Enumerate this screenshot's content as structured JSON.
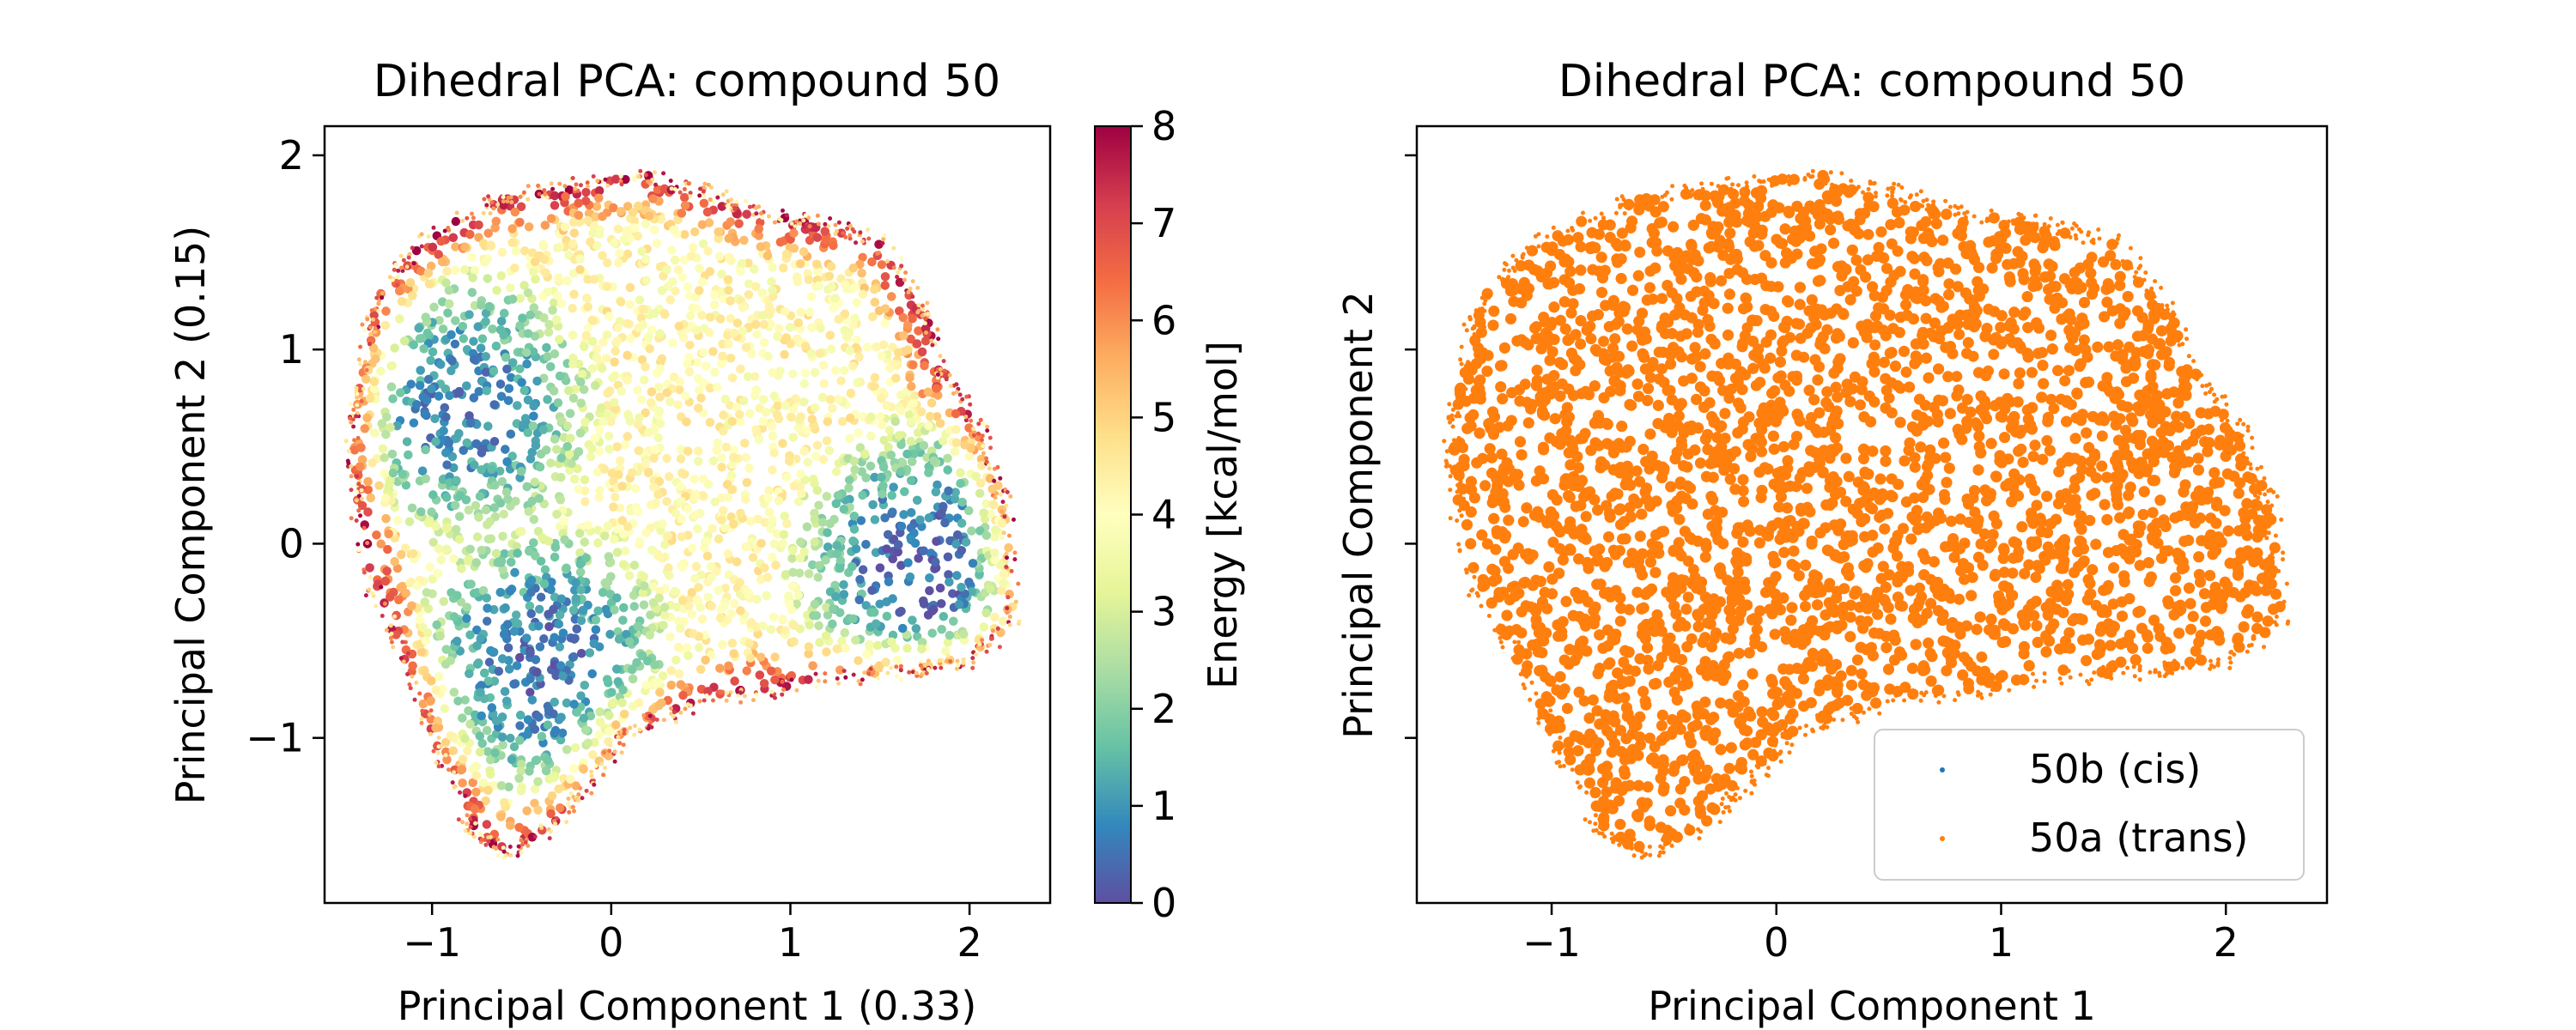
{
  "chart_data": [
    {
      "type": "scatter",
      "title": "Dihedral PCA: compound 50",
      "xlabel": "Principal Component 1 (0.33)",
      "ylabel": "Principal Component 2 (0.15)",
      "xlim": [
        -1.6,
        2.45
      ],
      "ylim": [
        -1.85,
        2.15
      ],
      "xticks": [
        "−1",
        "0",
        "1",
        "2"
      ],
      "yticks": [
        "−1",
        "0",
        "1",
        "2"
      ],
      "colorbar": {
        "label": "Energy [kcal/mol]",
        "range": [
          0,
          8
        ],
        "ticks": [
          "0",
          "1",
          "2",
          "3",
          "4",
          "5",
          "6",
          "7",
          "8"
        ],
        "colormap": "Spectral_r",
        "colors": [
          "#5e4fa2",
          "#3288bd",
          "#66c2a5",
          "#abdda4",
          "#e6f598",
          "#ffffbf",
          "#fee08b",
          "#fdae61",
          "#f46d43",
          "#d53e4f",
          "#9e0142"
        ]
      },
      "energy_minima": [
        {
          "x": -0.8,
          "y": 0.7,
          "energy": 0.6
        },
        {
          "x": -0.4,
          "y": -0.6,
          "energy": 0.4
        },
        {
          "x": 1.75,
          "y": -0.1,
          "energy": 0.3
        }
      ],
      "region_outline": [
        [
          -1.4,
          0.9
        ],
        [
          -1.3,
          1.3
        ],
        [
          -1.0,
          1.6
        ],
        [
          -0.6,
          1.78
        ],
        [
          -0.2,
          1.85
        ],
        [
          0.2,
          1.9
        ],
        [
          0.55,
          1.8
        ],
        [
          0.85,
          1.7
        ],
        [
          1.2,
          1.65
        ],
        [
          1.5,
          1.55
        ],
        [
          1.75,
          1.2
        ],
        [
          1.85,
          0.9
        ],
        [
          2.05,
          0.6
        ],
        [
          2.2,
          0.2
        ],
        [
          2.25,
          -0.4
        ],
        [
          2.0,
          -0.6
        ],
        [
          1.7,
          -0.65
        ],
        [
          1.2,
          -0.7
        ],
        [
          0.6,
          -0.8
        ],
        [
          0.1,
          -0.95
        ],
        [
          -0.1,
          -1.2
        ],
        [
          -0.3,
          -1.45
        ],
        [
          -0.6,
          -1.6
        ],
        [
          -0.8,
          -1.45
        ],
        [
          -0.95,
          -1.1
        ],
        [
          -1.15,
          -0.6
        ],
        [
          -1.35,
          -0.2
        ],
        [
          -1.45,
          0.4
        ]
      ]
    },
    {
      "type": "scatter",
      "title": "Dihedral PCA: compound 50",
      "xlabel": "Principal Component 1",
      "ylabel": "Principal Component 2",
      "xlim": [
        -1.6,
        2.45
      ],
      "ylim": [
        -1.85,
        2.15
      ],
      "xticks": [
        "−1",
        "0",
        "1",
        "2"
      ],
      "legend_position": "lower-right",
      "series": [
        {
          "name": "50b (cis)",
          "color": "#1f77b4"
        },
        {
          "name": "50a (trans)",
          "color": "#ff7f0e"
        }
      ]
    }
  ]
}
